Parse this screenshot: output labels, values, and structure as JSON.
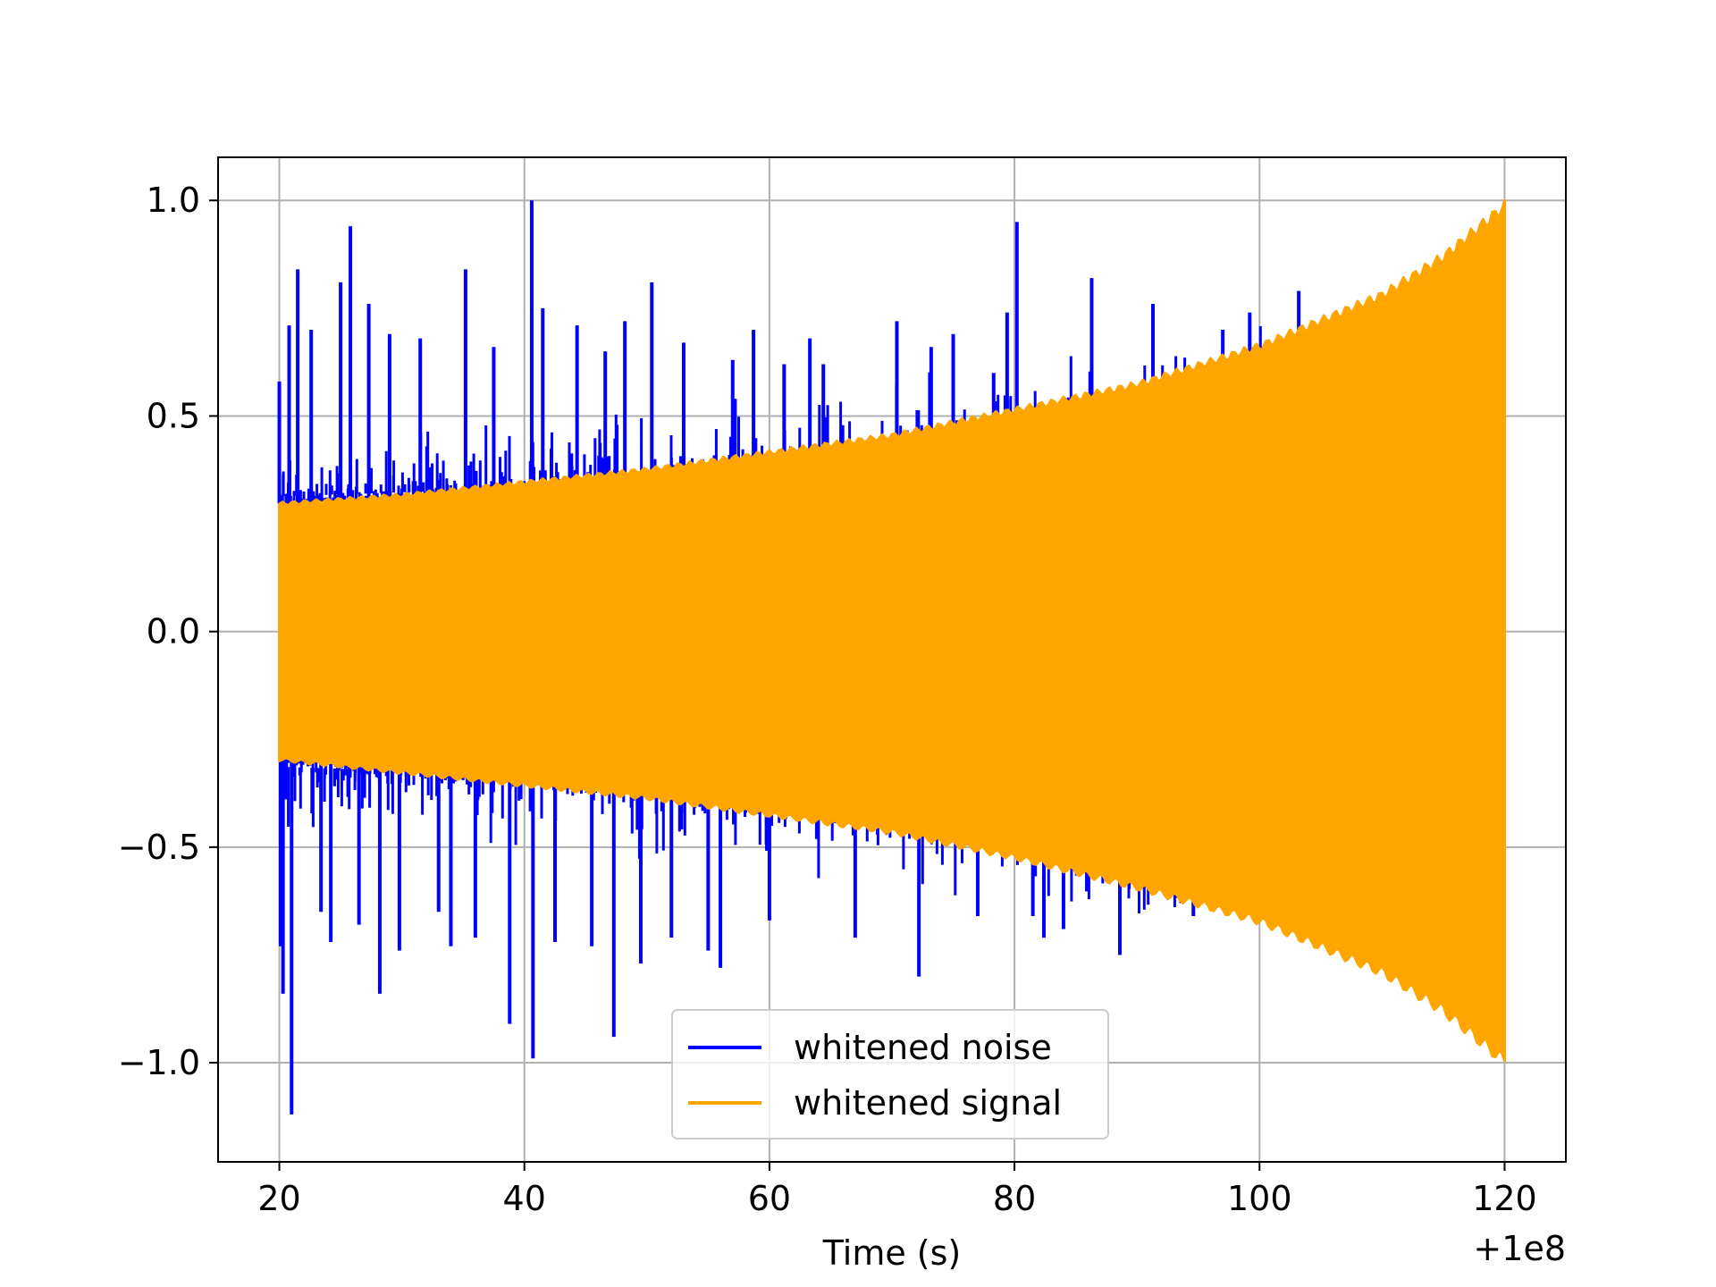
{
  "chart_data": {
    "type": "line",
    "title": "",
    "xlabel": "Time (s)",
    "ylabel": "",
    "x_offset_label": "+1e8",
    "xlim": [
      15,
      125
    ],
    "ylim": [
      -1.23,
      1.1
    ],
    "xticks": [
      20,
      40,
      60,
      80,
      100,
      120
    ],
    "xtick_labels": [
      "20",
      "40",
      "60",
      "80",
      "100",
      "120"
    ],
    "yticks": [
      -1.0,
      -0.5,
      0.0,
      0.5,
      1.0
    ],
    "ytick_labels": [
      "−1.0",
      "−0.5",
      "0.0",
      "0.5",
      "1.0"
    ],
    "grid": true,
    "legend_position": "lower center",
    "series": [
      {
        "name": "whitened noise",
        "color": "#0000ff",
        "envelope": {
          "x": [
            20,
            40,
            60,
            80,
            100,
            120
          ],
          "upper": [
            0.33,
            0.35,
            0.4,
            0.45,
            0.5,
            0.55
          ],
          "lower": [
            -0.33,
            -0.35,
            -0.4,
            -0.45,
            -0.5,
            -0.55
          ]
        },
        "spikes": [
          {
            "x": 20.0,
            "y": 0.58
          },
          {
            "x": 20.1,
            "y": -0.73
          },
          {
            "x": 20.3,
            "y": -0.84
          },
          {
            "x": 20.8,
            "y": 0.71
          },
          {
            "x": 21.0,
            "y": -1.12
          },
          {
            "x": 21.5,
            "y": 0.84
          },
          {
            "x": 22.6,
            "y": 0.7
          },
          {
            "x": 23.4,
            "y": -0.65
          },
          {
            "x": 24.2,
            "y": -0.72
          },
          {
            "x": 25.0,
            "y": 0.81
          },
          {
            "x": 25.8,
            "y": 0.94
          },
          {
            "x": 26.5,
            "y": -0.68
          },
          {
            "x": 27.3,
            "y": 0.76
          },
          {
            "x": 28.2,
            "y": -0.84
          },
          {
            "x": 29.0,
            "y": 0.69
          },
          {
            "x": 29.8,
            "y": -0.74
          },
          {
            "x": 31.5,
            "y": 0.68
          },
          {
            "x": 33.0,
            "y": -0.65
          },
          {
            "x": 34.0,
            "y": -0.73
          },
          {
            "x": 35.2,
            "y": 0.84
          },
          {
            "x": 36.0,
            "y": -0.71
          },
          {
            "x": 37.5,
            "y": 0.66
          },
          {
            "x": 38.8,
            "y": -0.91
          },
          {
            "x": 40.6,
            "y": 1.0
          },
          {
            "x": 40.7,
            "y": -0.99
          },
          {
            "x": 41.5,
            "y": 0.75
          },
          {
            "x": 42.5,
            "y": -0.72
          },
          {
            "x": 44.3,
            "y": 0.71
          },
          {
            "x": 45.5,
            "y": -0.73
          },
          {
            "x": 46.6,
            "y": 0.65
          },
          {
            "x": 47.3,
            "y": -0.94
          },
          {
            "x": 48.2,
            "y": 0.72
          },
          {
            "x": 49.5,
            "y": -0.77
          },
          {
            "x": 50.4,
            "y": 0.81
          },
          {
            "x": 52.0,
            "y": -0.71
          },
          {
            "x": 53.0,
            "y": 0.67
          },
          {
            "x": 55.0,
            "y": -0.74
          },
          {
            "x": 56.0,
            "y": -0.78
          },
          {
            "x": 57.0,
            "y": 0.63
          },
          {
            "x": 58.7,
            "y": 0.7
          },
          {
            "x": 60.0,
            "y": -0.67
          },
          {
            "x": 61.2,
            "y": 0.62
          },
          {
            "x": 63.3,
            "y": 0.68
          },
          {
            "x": 64.4,
            "y": 0.62
          },
          {
            "x": 67.0,
            "y": -0.71
          },
          {
            "x": 70.4,
            "y": 0.72
          },
          {
            "x": 72.2,
            "y": -0.8
          },
          {
            "x": 73.2,
            "y": 0.66
          },
          {
            "x": 75.0,
            "y": 0.69
          },
          {
            "x": 77.0,
            "y": -0.66
          },
          {
            "x": 78.3,
            "y": 0.6
          },
          {
            "x": 79.4,
            "y": 0.74
          },
          {
            "x": 80.2,
            "y": 0.95
          },
          {
            "x": 81.5,
            "y": -0.66
          },
          {
            "x": 82.4,
            "y": -0.71
          },
          {
            "x": 84.0,
            "y": -0.69
          },
          {
            "x": 86.3,
            "y": 0.82
          },
          {
            "x": 88.6,
            "y": -0.75
          },
          {
            "x": 91.3,
            "y": 0.76
          },
          {
            "x": 93.6,
            "y": -0.63
          },
          {
            "x": 94.6,
            "y": -0.66
          },
          {
            "x": 96.0,
            "y": -0.63
          },
          {
            "x": 97.0,
            "y": 0.7
          },
          {
            "x": 99.2,
            "y": 0.74
          },
          {
            "x": 103.2,
            "y": 0.79
          }
        ]
      },
      {
        "name": "whitened signal",
        "color": "#ffa500",
        "envelope": {
          "x": [
            20,
            30,
            40,
            50,
            60,
            70,
            80,
            90,
            100,
            110,
            115,
            120
          ],
          "upper": [
            0.3,
            0.32,
            0.35,
            0.38,
            0.42,
            0.46,
            0.52,
            0.58,
            0.67,
            0.79,
            0.88,
            1.0
          ],
          "lower": [
            -0.3,
            -0.33,
            -0.36,
            -0.39,
            -0.43,
            -0.47,
            -0.53,
            -0.6,
            -0.68,
            -0.8,
            -0.89,
            -1.01
          ]
        }
      }
    ]
  }
}
